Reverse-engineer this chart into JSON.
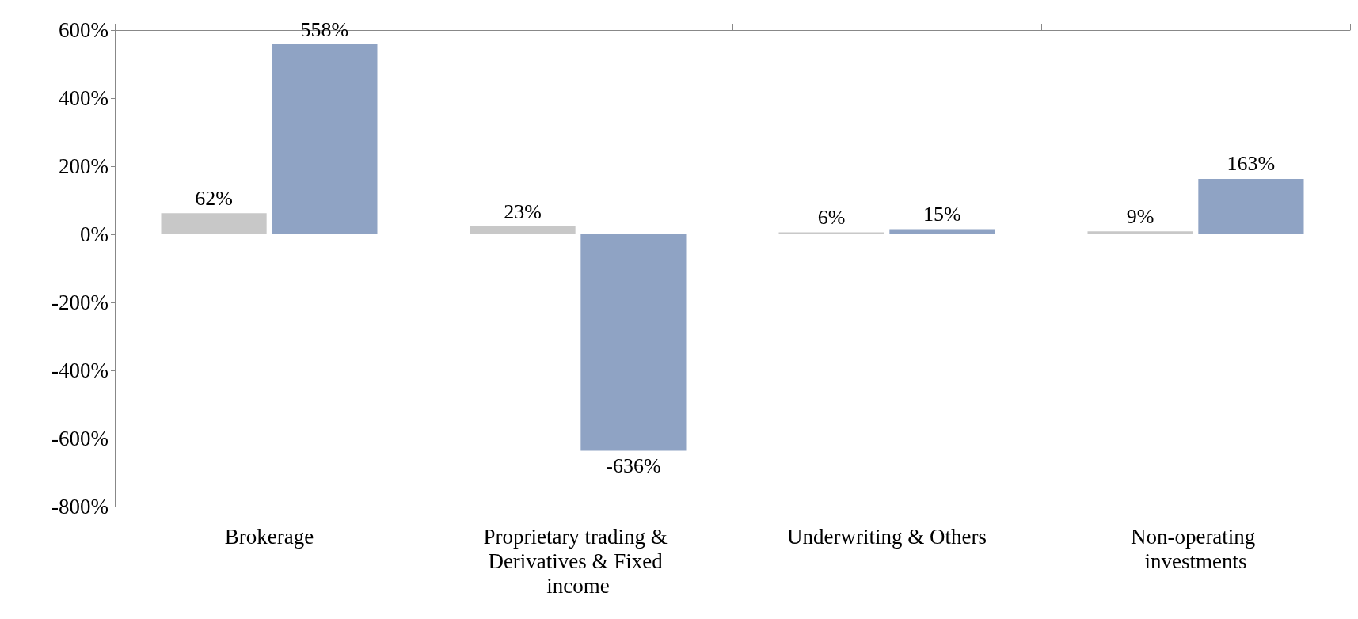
{
  "chart_data": {
    "type": "bar",
    "categories": [
      "Brokerage",
      "Proprietary trading & Derivatives & Fixed income",
      "Underwriting & Others",
      "Non-operating investments"
    ],
    "series": [
      {
        "color": "#c8c8c8",
        "values": [
          62,
          23,
          6,
          9
        ],
        "value_labels": [
          "62%",
          "23%",
          "6%",
          "9%"
        ]
      },
      {
        "color": "#8fa3c4",
        "values": [
          558,
          -636,
          15,
          163
        ],
        "value_labels": [
          "558%",
          "-636%",
          "15%",
          "163%"
        ]
      }
    ],
    "ylim": [
      -800,
      600
    ],
    "yticks": [
      {
        "value": -800,
        "label": "-800%"
      },
      {
        "value": -600,
        "label": "-600%"
      },
      {
        "value": -400,
        "label": "-400%"
      },
      {
        "value": -200,
        "label": "-200%"
      },
      {
        "value": 0,
        "label": "0%"
      },
      {
        "value": 200,
        "label": "200%"
      },
      {
        "value": 400,
        "label": "400%"
      },
      {
        "value": 600,
        "label": "600%"
      }
    ],
    "grid": false
  }
}
